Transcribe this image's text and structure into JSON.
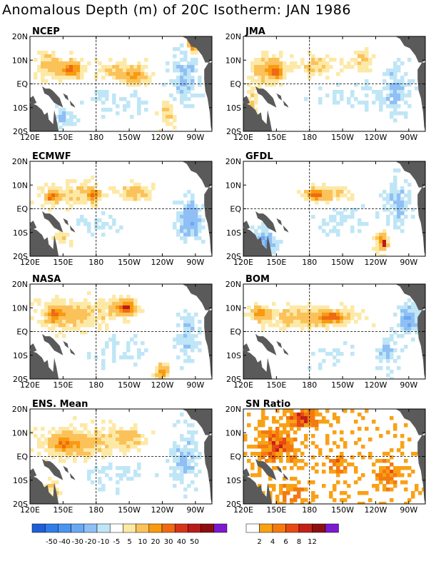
{
  "title": "Anomalous Depth (m) of 20C Isotherm: JAN 1986",
  "colors": {
    "land": "#5a5a5a",
    "anomaly_scale": [
      "#1f5fd6",
      "#2f7ee8",
      "#4a95f0",
      "#6aa8f2",
      "#8fbff5",
      "#bfe6f6",
      "#ffffff",
      "#fde9a6",
      "#fbc25a",
      "#f99a0f",
      "#ef6a14",
      "#d63518",
      "#b81c1a",
      "#8c0e0e",
      "#7b1ad0"
    ],
    "sn_scale": [
      "#ffffff",
      "#f9a115",
      "#f47a10",
      "#e64a12",
      "#c4201a",
      "#8b0f0f",
      "#7b1ad0"
    ]
  },
  "chart_data": [
    {
      "type": "heatmap",
      "title": "NCEP",
      "x_ticks": [
        "120E",
        "150E",
        "180",
        "150W",
        "120W",
        "90W"
      ],
      "y_ticks": [
        "20N",
        "10N",
        "EQ",
        "10S",
        "20S"
      ],
      "blobs": [
        {
          "lon": 140,
          "lat": 8,
          "rx": 14,
          "ry": 5,
          "v": 15
        },
        {
          "lon": 158,
          "lat": 6,
          "rx": 9,
          "ry": 3,
          "v": 30
        },
        {
          "lon": 200,
          "lat": 6,
          "rx": 22,
          "ry": 4,
          "v": 10
        },
        {
          "lon": 215,
          "lat": 3,
          "rx": 10,
          "ry": 3,
          "v": 20
        },
        {
          "lon": 245,
          "lat": -12,
          "rx": 8,
          "ry": 6,
          "v": 10
        },
        {
          "lon": 268,
          "lat": 17,
          "rx": 4,
          "ry": 3,
          "v": 40
        },
        {
          "lon": 200,
          "lat": -8,
          "rx": 30,
          "ry": 5,
          "v": -5
        },
        {
          "lon": 260,
          "lat": 2,
          "rx": 12,
          "ry": 12,
          "v": -10
        },
        {
          "lon": 150,
          "lat": -14,
          "rx": 10,
          "ry": 4,
          "v": -10
        }
      ]
    },
    {
      "type": "heatmap",
      "title": "JMA",
      "x_ticks": [
        "120E",
        "150E",
        "180",
        "150W",
        "120W",
        "90W"
      ],
      "y_ticks": [
        "20N",
        "10N",
        "EQ",
        "10S",
        "20S"
      ],
      "blobs": [
        {
          "lon": 140,
          "lat": 6,
          "rx": 12,
          "ry": 6,
          "v": 15
        },
        {
          "lon": 150,
          "lat": 5,
          "rx": 6,
          "ry": 3,
          "v": 30
        },
        {
          "lon": 185,
          "lat": 8,
          "rx": 20,
          "ry": 4,
          "v": 10
        },
        {
          "lon": 230,
          "lat": 10,
          "rx": 14,
          "ry": 4,
          "v": 10
        },
        {
          "lon": 128,
          "lat": -10,
          "rx": 5,
          "ry": 8,
          "v": 10
        },
        {
          "lon": 275,
          "lat": 19,
          "rx": 4,
          "ry": 2,
          "v": 40
        },
        {
          "lon": 220,
          "lat": -6,
          "rx": 30,
          "ry": 6,
          "v": -5
        },
        {
          "lon": 258,
          "lat": -2,
          "rx": 12,
          "ry": 10,
          "v": -10
        }
      ]
    },
    {
      "type": "heatmap",
      "title": "ECMWF",
      "x_ticks": [
        "120E",
        "150E",
        "180",
        "150W",
        "120W",
        "90W"
      ],
      "y_ticks": [
        "20N",
        "10N",
        "EQ",
        "10S",
        "20S"
      ],
      "blobs": [
        {
          "lon": 160,
          "lat": 6,
          "rx": 30,
          "ry": 5,
          "v": 10
        },
        {
          "lon": 140,
          "lat": 5,
          "rx": 5,
          "ry": 2,
          "v": 30
        },
        {
          "lon": 178,
          "lat": 6,
          "rx": 5,
          "ry": 2,
          "v": 30
        },
        {
          "lon": 215,
          "lat": 7,
          "rx": 14,
          "ry": 3,
          "v": 15
        },
        {
          "lon": 265,
          "lat": -4,
          "rx": 10,
          "ry": 8,
          "v": -20
        },
        {
          "lon": 180,
          "lat": -6,
          "rx": 20,
          "ry": 5,
          "v": -5
        },
        {
          "lon": 150,
          "lat": -12,
          "rx": 8,
          "ry": 3,
          "v": 10
        }
      ]
    },
    {
      "type": "heatmap",
      "title": "GFDL",
      "x_ticks": [
        "120E",
        "150E",
        "180",
        "150W",
        "120W",
        "90W"
      ],
      "y_ticks": [
        "20N",
        "10N",
        "EQ",
        "10S",
        "20S"
      ],
      "blobs": [
        {
          "lon": 195,
          "lat": 6,
          "rx": 18,
          "ry": 3,
          "v": 15
        },
        {
          "lon": 185,
          "lat": 6,
          "rx": 6,
          "ry": 2,
          "v": 30
        },
        {
          "lon": 245,
          "lat": -13,
          "rx": 6,
          "ry": 4,
          "v": 20
        },
        {
          "lon": 248,
          "lat": -15,
          "rx": 2,
          "ry": 2,
          "v": 40
        },
        {
          "lon": 260,
          "lat": 2,
          "rx": 12,
          "ry": 10,
          "v": -10
        },
        {
          "lon": 140,
          "lat": -14,
          "rx": 10,
          "ry": 5,
          "v": -20
        },
        {
          "lon": 210,
          "lat": -4,
          "rx": 24,
          "ry": 6,
          "v": -5
        }
      ]
    },
    {
      "type": "heatmap",
      "title": "NASA",
      "x_ticks": [
        "120E",
        "150E",
        "180",
        "150W",
        "120W",
        "90W"
      ],
      "y_ticks": [
        "20N",
        "10N",
        "EQ",
        "10S",
        "20S"
      ],
      "blobs": [
        {
          "lon": 160,
          "lat": 7,
          "rx": 28,
          "ry": 6,
          "v": 15
        },
        {
          "lon": 142,
          "lat": 7,
          "rx": 6,
          "ry": 3,
          "v": 30
        },
        {
          "lon": 205,
          "lat": 10,
          "rx": 12,
          "ry": 4,
          "v": 20
        },
        {
          "lon": 208,
          "lat": 10,
          "rx": 5,
          "ry": 2,
          "v": 30
        },
        {
          "lon": 240,
          "lat": -17,
          "rx": 5,
          "ry": 3,
          "v": 30
        },
        {
          "lon": 262,
          "lat": -2,
          "rx": 10,
          "ry": 10,
          "v": -10
        },
        {
          "lon": 200,
          "lat": -8,
          "rx": 24,
          "ry": 6,
          "v": -5
        }
      ]
    },
    {
      "type": "heatmap",
      "title": "BOM",
      "x_ticks": [
        "120E",
        "150E",
        "180",
        "150W",
        "120W",
        "90W"
      ],
      "y_ticks": [
        "20N",
        "10N",
        "EQ",
        "10S",
        "20S"
      ],
      "blobs": [
        {
          "lon": 180,
          "lat": 6,
          "rx": 40,
          "ry": 4,
          "v": 15
        },
        {
          "lon": 200,
          "lat": 6,
          "rx": 10,
          "ry": 2,
          "v": 30
        },
        {
          "lon": 135,
          "lat": 8,
          "rx": 8,
          "ry": 3,
          "v": 20
        },
        {
          "lon": 250,
          "lat": -8,
          "rx": 8,
          "ry": 8,
          "v": -10
        },
        {
          "lon": 270,
          "lat": 5,
          "rx": 8,
          "ry": 6,
          "v": -20
        },
        {
          "lon": 200,
          "lat": -10,
          "rx": 20,
          "ry": 5,
          "v": -5
        }
      ]
    },
    {
      "type": "heatmap",
      "title": "ENS. Mean",
      "x_ticks": [
        "120E",
        "150E",
        "180",
        "150W",
        "120W",
        "90W"
      ],
      "y_ticks": [
        "20N",
        "10N",
        "EQ",
        "10S",
        "20S"
      ],
      "blobs": [
        {
          "lon": 165,
          "lat": 6,
          "rx": 32,
          "ry": 6,
          "v": 15
        },
        {
          "lon": 150,
          "lat": 5,
          "rx": 10,
          "ry": 3,
          "v": 20
        },
        {
          "lon": 210,
          "lat": 8,
          "rx": 14,
          "ry": 4,
          "v": 15
        },
        {
          "lon": 260,
          "lat": 0,
          "rx": 12,
          "ry": 12,
          "v": -10
        },
        {
          "lon": 195,
          "lat": -8,
          "rx": 26,
          "ry": 6,
          "v": -5
        },
        {
          "lon": 140,
          "lat": -14,
          "rx": 8,
          "ry": 4,
          "v": 10
        }
      ]
    },
    {
      "type": "heatmap",
      "title": "SN Ratio",
      "x_ticks": [
        "120E",
        "150E",
        "180",
        "150W",
        "120W",
        "90W"
      ],
      "y_ticks": [
        "20N",
        "10N",
        "EQ",
        "10S",
        "20S"
      ],
      "speckle": true,
      "blobs": [
        {
          "lon": 150,
          "lat": 5,
          "rx": 18,
          "ry": 8,
          "v": 6
        },
        {
          "lon": 175,
          "lat": 16,
          "rx": 12,
          "ry": 4,
          "v": 8
        },
        {
          "lon": 205,
          "lat": -3,
          "rx": 10,
          "ry": 4,
          "v": 4
        },
        {
          "lon": 250,
          "lat": -8,
          "rx": 8,
          "ry": 6,
          "v": 6
        },
        {
          "lon": 160,
          "lat": -15,
          "rx": 14,
          "ry": 5,
          "v": 4
        }
      ]
    }
  ],
  "colorbars": {
    "anomaly": {
      "levels": [
        "-50",
        "-40",
        "-30",
        "-20",
        "-10",
        "-5",
        "5",
        "10",
        "20",
        "30",
        "40",
        "50"
      ]
    },
    "sn": {
      "levels": [
        "2",
        "4",
        "6",
        "8",
        "12"
      ]
    }
  }
}
